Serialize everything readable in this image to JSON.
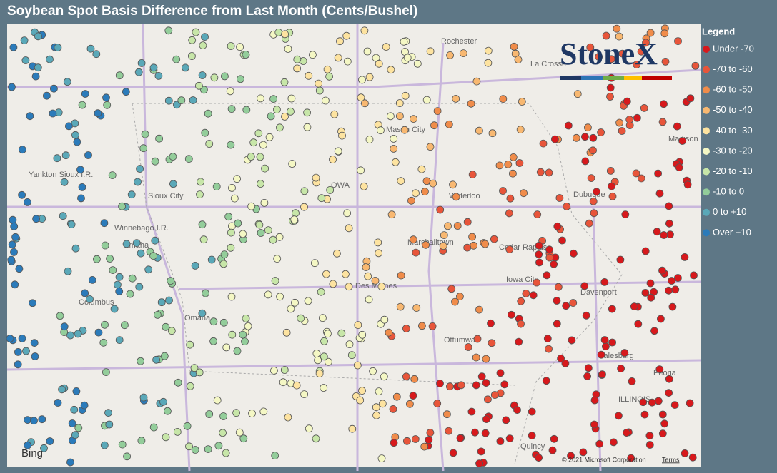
{
  "header": {
    "title": "Soybean Spot Basis Difference from Last Month (Cents/Bushel)"
  },
  "legend": {
    "title": "Legend",
    "items": [
      {
        "label": "Under -70",
        "color": "#d7191c"
      },
      {
        "label": "-70 to -60",
        "color": "#e8553a"
      },
      {
        "label": "-60 to -50",
        "color": "#f08c4a"
      },
      {
        "label": "-50 to -40",
        "color": "#f8b871"
      },
      {
        "label": "-40 to -30",
        "color": "#fde3a0"
      },
      {
        "label": "-30 to -20",
        "color": "#f4f7c4"
      },
      {
        "label": "-20 to -10",
        "color": "#c7e6a8"
      },
      {
        "label": "-10 to 0",
        "color": "#93cd9a"
      },
      {
        "label": "0 to +10",
        "color": "#5aa8b8"
      },
      {
        "label": "Over +10",
        "color": "#2b7bba"
      }
    ]
  },
  "map": {
    "logo": "StoneX",
    "provider": "Bing",
    "attribution": "© 2021 Microsoft Corporation",
    "terms": "Terms",
    "labels": [
      "Rochester",
      "La Crosse",
      "Mason City",
      "IOWA",
      "Waterloo",
      "Dubuque",
      "Madison",
      "Sioux City",
      "Winnebago I.R.",
      "Omaha",
      "Marshalltown",
      "Cedar Rapids",
      "Iowa City",
      "Davenport",
      "Des Moines",
      "Columbus",
      "Omaha",
      "Ottumwa",
      "Galesburg",
      "Peoria",
      "ILLINOIS",
      "Quincy",
      "Yankton Sioux I.R."
    ]
  }
}
